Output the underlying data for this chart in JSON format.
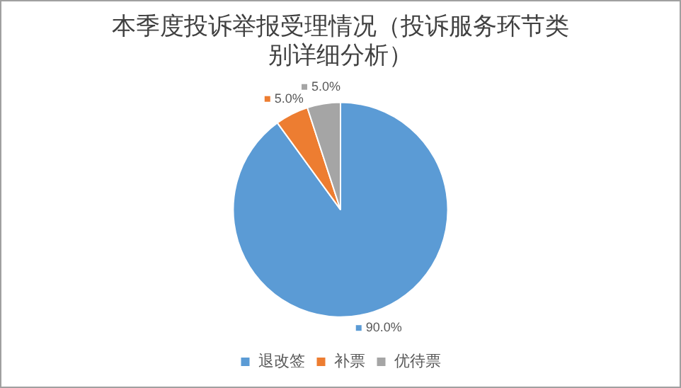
{
  "chart_data": {
    "type": "pie",
    "title": "本季度投诉举报受理情况（投诉服务环节类别详细分析）",
    "categories": [
      "退改签",
      "补票",
      "优待票"
    ],
    "values": [
      90,
      5,
      5
    ],
    "colors": [
      "#5b9bd5",
      "#ed7d31",
      "#a5a5a5"
    ],
    "value_labels": [
      "90.0%",
      "5.0%",
      "5.0%"
    ],
    "legend": "bottom"
  }
}
